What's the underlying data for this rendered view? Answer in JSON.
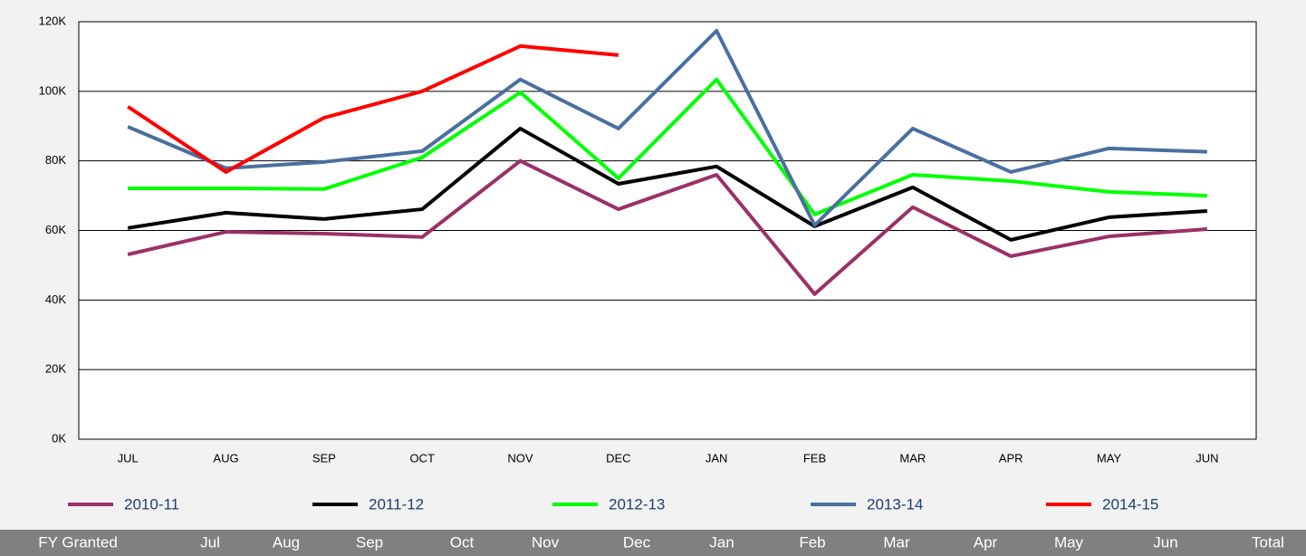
{
  "chart_data": {
    "type": "line",
    "categories": [
      "JUL",
      "AUG",
      "SEP",
      "OCT",
      "NOV",
      "DEC",
      "JAN",
      "FEB",
      "MAR",
      "APR",
      "MAY",
      "JUN"
    ],
    "series": [
      {
        "name": "2010-11",
        "color": "#9b3068",
        "values": [
          53.1,
          59.6,
          59.1,
          58.1,
          80,
          66.1,
          76,
          41.7,
          66.7,
          52.6,
          58.3,
          60.4
        ]
      },
      {
        "name": "2011-12",
        "color": "#000000",
        "values": [
          60.7,
          65.1,
          63.3,
          66.1,
          89.3,
          73.4,
          78.4,
          61.2,
          72.4,
          57.3,
          63.8,
          65.6
        ]
      },
      {
        "name": "2012-13",
        "color": "#00ff00",
        "values": [
          72.1,
          72.1,
          71.9,
          81,
          99.7,
          75,
          103.4,
          64.6,
          76,
          74.2,
          71.1,
          70
        ]
      },
      {
        "name": "2013-14",
        "color": "#4a6fa0",
        "values": [
          89.8,
          77.9,
          79.7,
          82.8,
          103.4,
          89.3,
          117.4,
          61.5,
          89.3,
          76.8,
          83.6,
          82.6
        ]
      },
      {
        "name": "2014-15",
        "color": "#ff0000",
        "values": [
          95.6,
          76.8,
          92.4,
          100,
          113,
          110.4,
          null,
          null,
          null,
          null,
          null,
          null
        ]
      }
    ],
    "ylim": [
      0,
      120
    ],
    "yticks": [
      {
        "value": 0,
        "label": "0K"
      },
      {
        "value": 20,
        "label": "20K"
      },
      {
        "value": 40,
        "label": "40K"
      },
      {
        "value": 60,
        "label": "60K"
      },
      {
        "value": 80,
        "label": "80K"
      },
      {
        "value": 100,
        "label": "100K"
      },
      {
        "value": 120,
        "label": "120K"
      }
    ],
    "grid": true,
    "legend": "bottom"
  },
  "table": {
    "header": [
      "FY Granted",
      "Jul",
      "Aug",
      "Sep",
      "Oct",
      "Nov",
      "Dec",
      "Jan",
      "Feb",
      "Mar",
      "Apr",
      "May",
      "Jun",
      "Total"
    ]
  }
}
